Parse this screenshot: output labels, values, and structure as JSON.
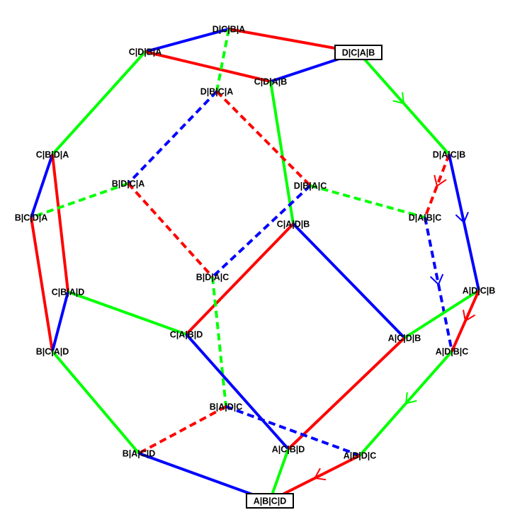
{
  "colors": {
    "red": "#ff0000",
    "green": "#00ff00",
    "blue": "#0000ff",
    "text": "#000000"
  },
  "nodes": [
    {
      "id": "DCBA",
      "label": "D|C|B|A"
    },
    {
      "id": "CDBA",
      "label": "C|D|B|A"
    },
    {
      "id": "DCAB",
      "label": "D|C|A|B",
      "boxed": true
    },
    {
      "id": "CDAB",
      "label": "C|D|A|B"
    },
    {
      "id": "DBCA",
      "label": "D|B|C|A"
    },
    {
      "id": "CBDA",
      "label": "C|B|D|A"
    },
    {
      "id": "DACB",
      "label": "D|A|C|B"
    },
    {
      "id": "BDCA",
      "label": "B|D|C|A"
    },
    {
      "id": "DBAC",
      "label": "D|B|A|C"
    },
    {
      "id": "BCDA",
      "label": "B|C|D|A"
    },
    {
      "id": "DABC",
      "label": "D|A|B|C"
    },
    {
      "id": "CADB",
      "label": "C|A|D|B"
    },
    {
      "id": "BDAC",
      "label": "B|D|A|C"
    },
    {
      "id": "ADCB",
      "label": "A|D|C|B"
    },
    {
      "id": "CBAD",
      "label": "C|B|A|D"
    },
    {
      "id": "CABD",
      "label": "C|A|B|D"
    },
    {
      "id": "ACDB",
      "label": "A|C|D|B"
    },
    {
      "id": "BCAD",
      "label": "B|C|A|D"
    },
    {
      "id": "ADBC",
      "label": "A|D|B|C"
    },
    {
      "id": "BADC",
      "label": "B|A|D|C"
    },
    {
      "id": "BACD",
      "label": "B|A|C|D"
    },
    {
      "id": "ACBD",
      "label": "A|C|B|D"
    },
    {
      "id": "ABDC",
      "label": "A|B|D|C"
    },
    {
      "id": "ABCD",
      "label": "A|B|C|D",
      "boxed": true
    }
  ],
  "edges": [
    {
      "from": "CDBA",
      "to": "DCBA",
      "color": "blue"
    },
    {
      "from": "DCBA",
      "to": "DCAB",
      "color": "red"
    },
    {
      "from": "CDBA",
      "to": "CDAB",
      "color": "red"
    },
    {
      "from": "CDAB",
      "to": "DCAB",
      "color": "blue"
    },
    {
      "from": "DCBA",
      "to": "DBCA",
      "color": "green",
      "dashed": true
    },
    {
      "from": "CDBA",
      "to": "CBDA",
      "color": "green"
    },
    {
      "from": "DCAB",
      "to": "DACB",
      "color": "green",
      "arrow": true
    },
    {
      "from": "CDAB",
      "to": "CADB",
      "color": "green"
    },
    {
      "from": "DBCA",
      "to": "BDCA",
      "color": "blue",
      "dashed": true
    },
    {
      "from": "DBCA",
      "to": "DBAC",
      "color": "red",
      "dashed": true
    },
    {
      "from": "CBDA",
      "to": "BCDA",
      "color": "blue"
    },
    {
      "from": "CBDA",
      "to": "CBAD",
      "color": "red"
    },
    {
      "from": "BDCA",
      "to": "BCDA",
      "color": "green",
      "dashed": true
    },
    {
      "from": "BDCA",
      "to": "BDAC",
      "color": "red",
      "dashed": true
    },
    {
      "from": "DBAC",
      "to": "BDAC",
      "color": "blue",
      "dashed": true
    },
    {
      "from": "DBAC",
      "to": "DABC",
      "color": "green",
      "dashed": true
    },
    {
      "from": "DACB",
      "to": "DABC",
      "color": "red",
      "dashed": true,
      "arrow": true
    },
    {
      "from": "DACB",
      "to": "ADCB",
      "color": "blue",
      "arrow": true
    },
    {
      "from": "BCDA",
      "to": "BCAD",
      "color": "red"
    },
    {
      "from": "DABC",
      "to": "ADBC",
      "color": "blue",
      "dashed": true,
      "arrow": true
    },
    {
      "from": "CADB",
      "to": "CABD",
      "color": "red"
    },
    {
      "from": "CADB",
      "to": "ACDB",
      "color": "blue"
    },
    {
      "from": "BDAC",
      "to": "BADC",
      "color": "green",
      "dashed": true
    },
    {
      "from": "ADCB",
      "to": "ACDB",
      "color": "green"
    },
    {
      "from": "ADCB",
      "to": "ADBC",
      "color": "red",
      "arrow": true
    },
    {
      "from": "CBAD",
      "to": "CABD",
      "color": "green"
    },
    {
      "from": "CBAD",
      "to": "BCAD",
      "color": "blue"
    },
    {
      "from": "CABD",
      "to": "ACBD",
      "color": "blue"
    },
    {
      "from": "ACDB",
      "to": "ACBD",
      "color": "red"
    },
    {
      "from": "BCAD",
      "to": "BACD",
      "color": "green"
    },
    {
      "from": "ADBC",
      "to": "ABDC",
      "color": "green",
      "arrow": true
    },
    {
      "from": "BADC",
      "to": "BACD",
      "color": "red",
      "dashed": true
    },
    {
      "from": "BADC",
      "to": "ABDC",
      "color": "blue",
      "dashed": true
    },
    {
      "from": "BACD",
      "to": "ABCD",
      "color": "blue"
    },
    {
      "from": "ACBD",
      "to": "ABCD",
      "color": "green"
    },
    {
      "from": "ABDC",
      "to": "ABCD",
      "color": "red",
      "arrow": true
    }
  ]
}
